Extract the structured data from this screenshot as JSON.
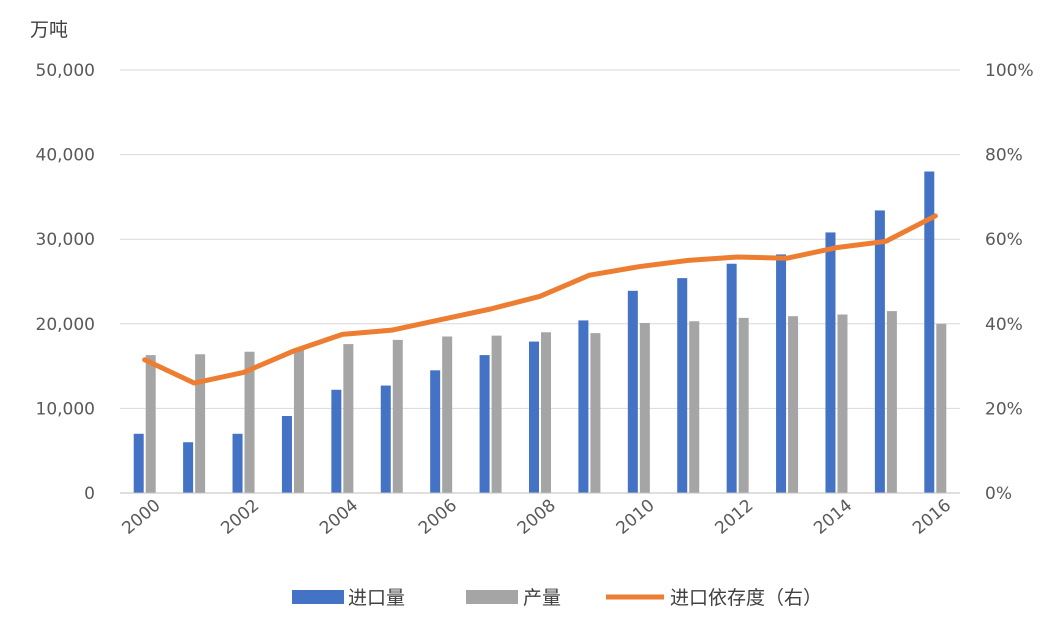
{
  "chart_data": {
    "type": "bar",
    "x": [
      2000,
      2001,
      2002,
      2003,
      2004,
      2005,
      2006,
      2007,
      2008,
      2009,
      2010,
      2011,
      2012,
      2013,
      2014,
      2015,
      2016
    ],
    "x_tick_labels": [
      "2000",
      "2002",
      "2004",
      "2006",
      "2008",
      "2010",
      "2012",
      "2014",
      "2016"
    ],
    "y_left": {
      "unit": "万吨",
      "lim": [
        0,
        50000
      ],
      "ticks": [
        "0",
        "10,000",
        "20,000",
        "30,000",
        "40,000",
        "50,000"
      ]
    },
    "y_right": {
      "lim": [
        0,
        100
      ],
      "ticks": [
        "0%",
        "20%",
        "40%",
        "60%",
        "80%",
        "100%"
      ]
    },
    "grid": true,
    "legend_position": "bottom",
    "series": [
      {
        "name": "进口量",
        "kind": "bar",
        "axis": "left",
        "color": "#4472C4",
        "values": [
          7000,
          6000,
          7000,
          9100,
          12200,
          12700,
          14500,
          16300,
          17900,
          20400,
          23900,
          25400,
          27100,
          28200,
          30800,
          33400,
          38000
        ]
      },
      {
        "name": "产量",
        "kind": "bar",
        "axis": "left",
        "color": "#A5A5A5",
        "values": [
          16300,
          16400,
          16700,
          16900,
          17600,
          18100,
          18500,
          18600,
          19000,
          18900,
          20100,
          20300,
          20700,
          20900,
          21100,
          21500,
          20000
        ]
      },
      {
        "name": "进口依存度（右）",
        "kind": "line",
        "axis": "right",
        "color": "#ED7D31",
        "values": [
          31.5,
          26.0,
          28.5,
          33.5,
          37.5,
          38.5,
          41.0,
          43.5,
          46.5,
          51.5,
          53.5,
          55.0,
          55.8,
          55.5,
          58.0,
          59.5,
          65.5
        ]
      }
    ]
  }
}
